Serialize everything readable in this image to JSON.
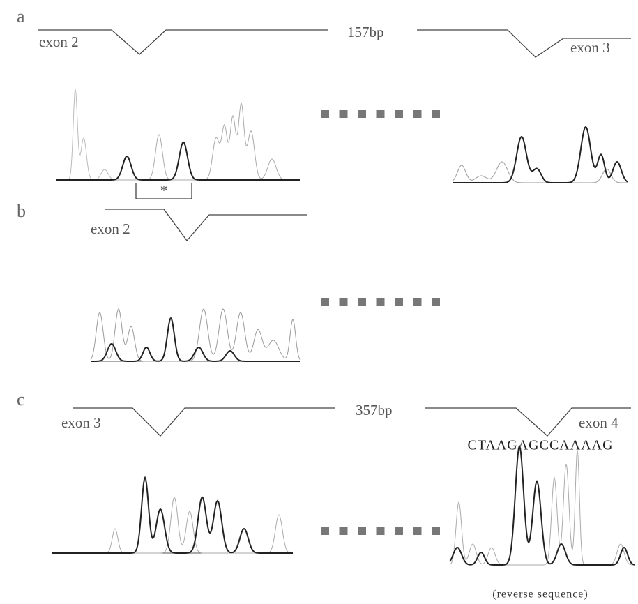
{
  "panels": [
    {
      "label": "a",
      "left_exon": "exon 2",
      "gap": "157bp",
      "right_exon": "exon 3",
      "marker": "*"
    },
    {
      "label": "b",
      "left_exon": "exon 2"
    },
    {
      "label": "c",
      "left_exon": "exon 3",
      "gap": "357bp",
      "right_exon": "exon 4",
      "sequence": "CTAAGAGCCAAAAG",
      "note": "(reverse sequence)"
    }
  ]
}
